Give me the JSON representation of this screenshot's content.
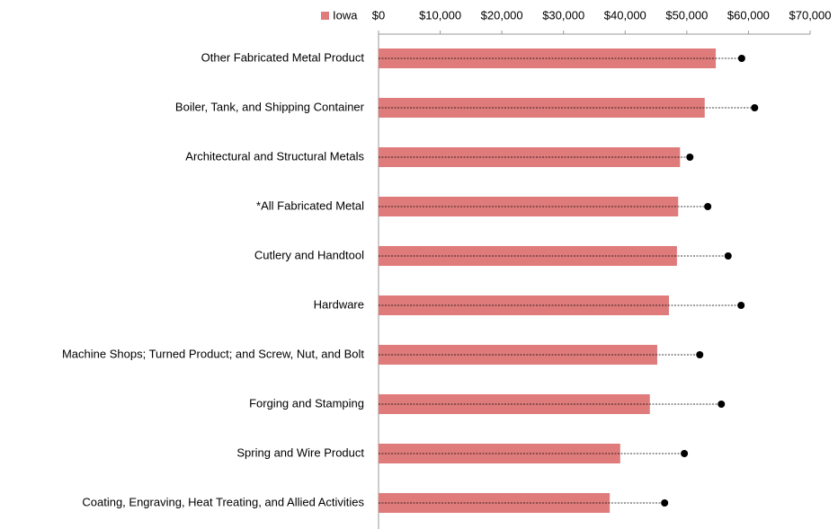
{
  "chart_data": {
    "type": "bar_dot",
    "categories": [
      "Other Fabricated Metal Product",
      "Boiler, Tank, and Shipping Container",
      "Architectural and Structural Metals",
      "*All Fabricated Metal",
      "Cutlery and Handtool",
      "Hardware",
      "Machine Shops; Turned Product; and Screw, Nut, and Bolt",
      "Forging and Stamping",
      "Spring and Wire Product",
      "Coating, Engraving, Heat Treating, and Allied Activities"
    ],
    "series": [
      {
        "name": "Iowa",
        "color": "#df7b7b",
        "values": [
          54700,
          52900,
          48900,
          48600,
          48400,
          47100,
          45200,
          44000,
          39200,
          37500
        ]
      },
      {
        "color": "#000000",
        "values": [
          58900,
          61000,
          50500,
          53400,
          56700,
          58800,
          52100,
          55600,
          49600,
          46400
        ]
      }
    ],
    "xlim": [
      0,
      70000
    ],
    "xticks": [
      {
        "value": 0,
        "label": "$0"
      },
      {
        "value": 10000,
        "label": "$10,000"
      },
      {
        "value": 20000,
        "label": "$20,000"
      },
      {
        "value": 30000,
        "label": "$30,000"
      },
      {
        "value": 40000,
        "label": "$40,000"
      },
      {
        "value": 50000,
        "label": "$50,000"
      },
      {
        "value": 60000,
        "label": "$60,000"
      },
      {
        "value": 70000,
        "label": "$70,000"
      }
    ],
    "legend": "top-left"
  }
}
